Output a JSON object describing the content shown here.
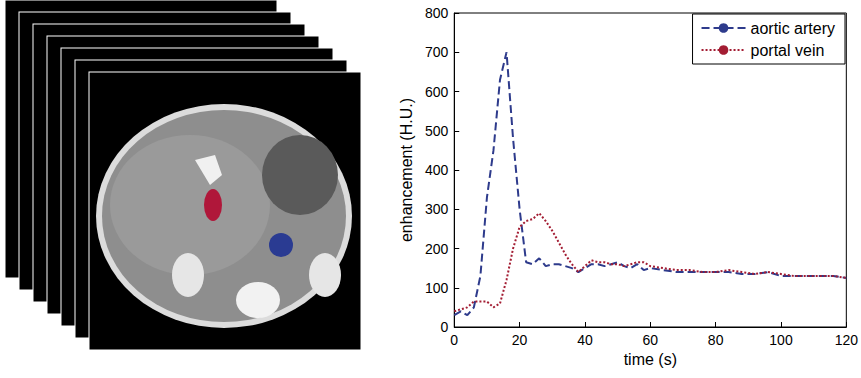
{
  "chart_data": {
    "type": "line",
    "x_label": "time (s)",
    "y_label": "enhancement (H.U.)",
    "x": [
      0,
      2,
      4,
      6,
      8,
      10,
      12,
      14,
      16,
      18,
      20,
      22,
      24,
      26,
      28,
      30,
      32,
      34,
      36,
      38,
      40,
      42,
      44,
      46,
      48,
      50,
      52,
      54,
      56,
      58,
      60,
      64,
      68,
      72,
      76,
      80,
      84,
      88,
      92,
      96,
      100,
      104,
      108,
      112,
      116,
      120
    ],
    "series": [
      {
        "name": "aortic artery",
        "color": "#2e3b8c",
        "line_style": "dashed",
        "values": [
          30,
          40,
          30,
          50,
          130,
          330,
          450,
          630,
          700,
          480,
          300,
          165,
          160,
          175,
          155,
          160,
          160,
          155,
          150,
          140,
          150,
          160,
          160,
          155,
          160,
          165,
          155,
          150,
          160,
          145,
          150,
          145,
          140,
          140,
          140,
          140,
          140,
          135,
          135,
          140,
          130,
          130,
          130,
          130,
          130,
          125
        ]
      },
      {
        "name": "portal vein",
        "color": "#a31d33",
        "line_style": "dotted",
        "values": [
          40,
          45,
          50,
          65,
          65,
          65,
          50,
          60,
          120,
          200,
          255,
          270,
          275,
          290,
          270,
          245,
          215,
          185,
          160,
          140,
          155,
          170,
          165,
          165,
          160,
          160,
          155,
          160,
          165,
          165,
          155,
          150,
          145,
          145,
          140,
          140,
          145,
          140,
          135,
          140,
          135,
          130,
          130,
          130,
          130,
          125
        ]
      }
    ],
    "xlim": [
      0,
      120
    ],
    "ylim": [
      0,
      800
    ],
    "xticks": [
      0,
      20,
      40,
      60,
      80,
      100,
      120
    ],
    "yticks": [
      0,
      100,
      200,
      300,
      400,
      500,
      600,
      700,
      800
    ],
    "legend": "upper right",
    "grid": false
  }
}
